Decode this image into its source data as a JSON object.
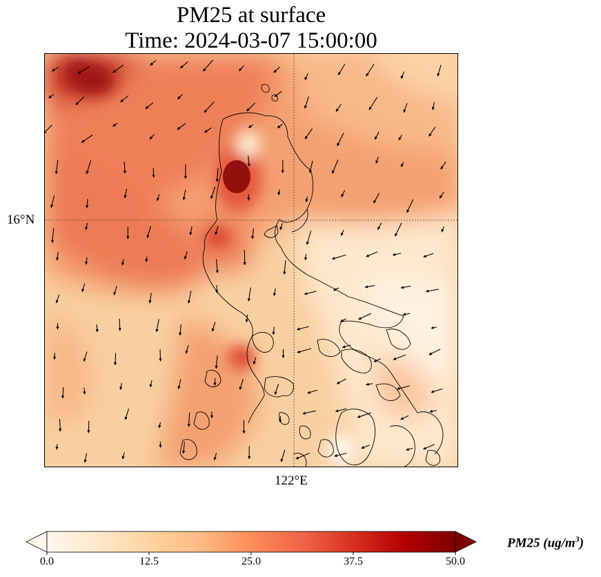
{
  "title": {
    "line1": "PM25 at surface",
    "line2": "Time: 2024-03-07 15:00:00"
  },
  "axes": {
    "lat_tick": "16°N",
    "lon_tick": "122°E"
  },
  "colorbar": {
    "label_main": "PM25 (ug/m",
    "label_exp": "3",
    "label_close": ")",
    "ticks": [
      "0.0",
      "12.5",
      "25.0",
      "37.5",
      "50.0"
    ],
    "range": [
      0,
      50
    ],
    "colormap": "OrRd",
    "extend": "both"
  },
  "colors": {
    "low": "#fff7ec",
    "mid": "#fdbb84",
    "high": "#ef6548",
    "max": "#7f0000",
    "coastline": "#000000",
    "wind_arrow": "#000000"
  }
}
